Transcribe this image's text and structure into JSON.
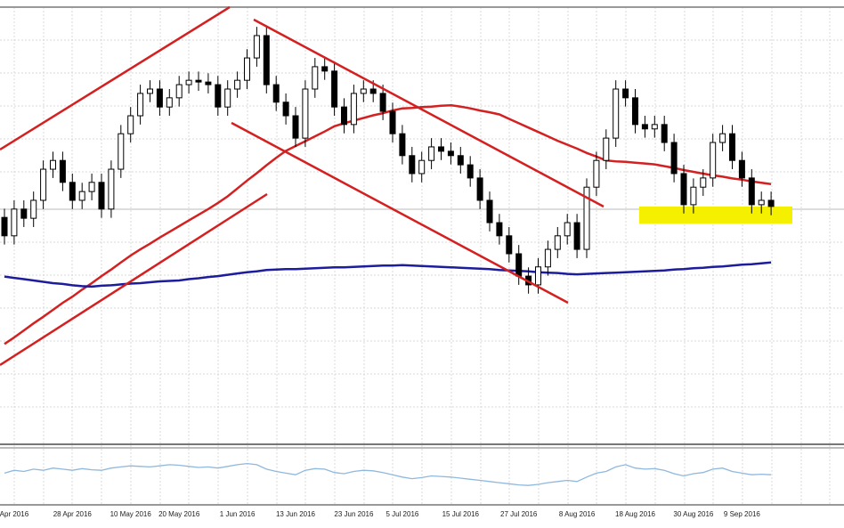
{
  "chart_data": [
    {
      "type": "candlestick",
      "categories": [
        null,
        "Apr 2016",
        null,
        null,
        null,
        null,
        null,
        "28 Apr 2016",
        null,
        null,
        null,
        null,
        null,
        "10 May 2016",
        null,
        null,
        null,
        null,
        "20 May 2016",
        null,
        null,
        null,
        null,
        null,
        "1 Jun 2016",
        null,
        null,
        null,
        null,
        null,
        "13 Jun 2016",
        null,
        null,
        null,
        null,
        null,
        "23 Jun 2016",
        null,
        null,
        null,
        null,
        "5 Jul 2016",
        null,
        null,
        null,
        null,
        null,
        "15 Jul 2016",
        null,
        null,
        null,
        null,
        null,
        "27 Jul 2016",
        null,
        null,
        null,
        null,
        null,
        "8 Aug 2016",
        null,
        null,
        null,
        null,
        null,
        "18 Aug 2016",
        null,
        null,
        null,
        null,
        null,
        "30 Aug 2016",
        null,
        null,
        null,
        null,
        "9 Sep 2016",
        null,
        null,
        null
      ],
      "open": [
        52.0,
        47.8,
        53.9,
        51.8,
        55.9,
        63.0,
        65.0,
        60.0,
        55.9,
        57.9,
        60.0,
        53.9,
        63.0,
        71.1,
        75.2,
        80.3,
        81.3,
        77.2,
        79.3,
        82.3,
        83.3,
        82.9,
        82.3,
        77.2,
        81.3,
        83.3,
        88.4,
        93.5,
        82.3,
        78.3,
        75.2,
        70.1,
        81.3,
        86.4,
        85.4,
        77.2,
        73.2,
        80.3,
        81.3,
        80.3,
        76.2,
        71.1,
        66.1,
        62.0,
        65.0,
        68.1,
        67.1,
        66.1,
        64.0,
        61.0,
        55.9,
        50.8,
        47.8,
        43.7,
        38.6,
        36.6,
        40.7,
        44.7,
        47.8,
        50.8,
        44.7,
        58.9,
        65.0,
        70.1,
        81.3,
        79.3,
        73.2,
        72.2,
        73.2,
        69.1,
        62.0,
        54.9,
        58.9,
        61.0,
        69.1,
        71.1,
        65.0,
        61.0,
        54.9,
        55.9
      ],
      "high": [
        54.0,
        55.9,
        55.9,
        57.9,
        65.0,
        67.0,
        67.0,
        62.0,
        59.9,
        62.0,
        62.0,
        65.0,
        73.1,
        77.2,
        82.3,
        83.3,
        83.3,
        81.3,
        84.3,
        85.3,
        85.3,
        84.9,
        84.3,
        83.3,
        85.3,
        90.4,
        95.5,
        95.5,
        84.3,
        80.3,
        77.2,
        83.3,
        88.4,
        88.4,
        87.4,
        79.2,
        82.3,
        83.3,
        83.3,
        82.3,
        78.2,
        73.1,
        68.1,
        67.0,
        70.1,
        70.1,
        69.1,
        68.1,
        66.0,
        63.0,
        57.9,
        52.8,
        49.8,
        45.7,
        40.6,
        42.7,
        46.7,
        49.8,
        52.8,
        52.8,
        60.9,
        67.0,
        72.1,
        83.3,
        83.3,
        81.3,
        75.2,
        75.2,
        75.2,
        71.1,
        64.0,
        60.9,
        63.0,
        71.1,
        73.1,
        73.1,
        67.0,
        63.0,
        57.9,
        57.9
      ],
      "low": [
        45.8,
        45.8,
        49.8,
        49.8,
        53.9,
        61.0,
        58.0,
        53.9,
        53.9,
        55.9,
        51.9,
        51.9,
        61.0,
        69.1,
        73.2,
        78.3,
        75.2,
        75.2,
        77.3,
        80.3,
        80.9,
        80.3,
        75.2,
        75.2,
        79.3,
        81.3,
        86.4,
        80.3,
        76.3,
        73.2,
        68.1,
        68.1,
        79.3,
        83.4,
        75.2,
        71.2,
        71.2,
        78.3,
        78.3,
        74.2,
        69.1,
        64.1,
        60.0,
        60.0,
        63.0,
        65.1,
        64.1,
        62.0,
        59.0,
        53.9,
        48.8,
        45.8,
        41.7,
        36.6,
        34.6,
        34.6,
        38.7,
        42.7,
        45.8,
        42.7,
        42.7,
        56.9,
        63.0,
        68.1,
        77.3,
        71.2,
        70.2,
        70.2,
        67.1,
        60.0,
        52.9,
        52.9,
        56.9,
        59.0,
        67.1,
        63.0,
        59.0,
        52.9,
        52.9,
        52.5
      ],
      "close": [
        47.8,
        53.9,
        51.8,
        55.9,
        63.0,
        65.0,
        60.0,
        55.9,
        57.9,
        60.0,
        53.9,
        63.0,
        71.1,
        75.2,
        80.3,
        81.3,
        77.2,
        79.3,
        82.3,
        83.3,
        82.9,
        82.3,
        77.2,
        81.3,
        83.3,
        88.4,
        93.5,
        82.3,
        78.3,
        75.2,
        70.1,
        81.3,
        86.4,
        85.4,
        77.2,
        73.2,
        80.3,
        81.3,
        80.3,
        76.2,
        71.1,
        66.1,
        62.0,
        65.0,
        68.1,
        67.1,
        66.1,
        64.0,
        61.0,
        55.9,
        50.8,
        47.8,
        43.7,
        38.6,
        36.6,
        40.7,
        44.7,
        47.8,
        50.8,
        44.7,
        58.9,
        65.0,
        70.1,
        81.3,
        79.3,
        73.2,
        72.2,
        73.2,
        69.1,
        62.0,
        54.9,
        58.9,
        61.0,
        69.1,
        71.1,
        65.0,
        61.0,
        54.9,
        55.9,
        54.5
      ],
      "lines": [
        {
          "color": "#d42020",
          "values": [
            23.1,
            24.6,
            26.2,
            27.8,
            29.3,
            30.9,
            32.5,
            33.9,
            35.5,
            37.0,
            38.6,
            40.1,
            41.7,
            43.3,
            44.7,
            46.0,
            47.4,
            48.7,
            50.0,
            51.3,
            52.6,
            53.9,
            55.3,
            56.8,
            58.6,
            60.4,
            62.1,
            63.9,
            65.6,
            67.2,
            68.3,
            69.4,
            70.5,
            71.6,
            72.8,
            73.5,
            74.1,
            74.7,
            75.3,
            75.8,
            76.4,
            76.9,
            77.0,
            77.2,
            77.3,
            77.5,
            77.6,
            77.3,
            76.9,
            76.4,
            76.0,
            75.5,
            74.5,
            73.5,
            72.5,
            71.5,
            70.5,
            69.5,
            68.6,
            67.7,
            66.7,
            65.9,
            65.0,
            64.8,
            64.7,
            64.5,
            64.3,
            64.1,
            63.7,
            63.3,
            62.8,
            62.4,
            62.0,
            61.6,
            61.3,
            60.9,
            60.6,
            60.2,
            59.9,
            59.6
          ]
        },
        {
          "color": "#1c1c9c",
          "values": [
            38.5,
            38.2,
            37.9,
            37.6,
            37.3,
            37.0,
            36.8,
            36.5,
            36.3,
            36.2,
            36.4,
            36.5,
            36.7,
            36.9,
            37.0,
            37.2,
            37.4,
            37.5,
            37.6,
            37.9,
            38.1,
            38.4,
            38.6,
            38.9,
            39.2,
            39.5,
            39.7,
            40.0,
            40.1,
            40.2,
            40.2,
            40.3,
            40.4,
            40.5,
            40.6,
            40.6,
            40.7,
            40.8,
            40.9,
            41.0,
            41.0,
            41.1,
            41.0,
            40.9,
            40.8,
            40.7,
            40.6,
            40.5,
            40.4,
            40.3,
            40.2,
            40.0,
            39.9,
            39.8,
            39.7,
            39.5,
            39.4,
            39.3,
            39.1,
            39.0,
            39.1,
            39.2,
            39.3,
            39.4,
            39.5,
            39.6,
            39.7,
            39.8,
            39.9,
            40.1,
            40.2,
            40.4,
            40.5,
            40.7,
            40.8,
            41.0,
            41.2,
            41.3,
            41.5,
            41.7
          ]
        }
      ],
      "ylim": [
        0,
        100
      ]
    },
    {
      "type": "line",
      "color": "#8fb8de",
      "ylim": [
        0,
        100
      ],
      "values": [
        55,
        60,
        58,
        62,
        60,
        64,
        62,
        60,
        63,
        61,
        60,
        64,
        66,
        68,
        67,
        66,
        68,
        70,
        69,
        67,
        65,
        66,
        64,
        67,
        70,
        72,
        70,
        62,
        58,
        55,
        52,
        60,
        63,
        62,
        56,
        54,
        58,
        60,
        59,
        56,
        52,
        48,
        45,
        47,
        50,
        49,
        48,
        46,
        44,
        42,
        40,
        38,
        36,
        34,
        33,
        35,
        38,
        40,
        42,
        40,
        48,
        55,
        58,
        66,
        70,
        64,
        62,
        63,
        60,
        54,
        50,
        54,
        56,
        62,
        64,
        58,
        55,
        52,
        53,
        52
      ]
    }
  ]
}
